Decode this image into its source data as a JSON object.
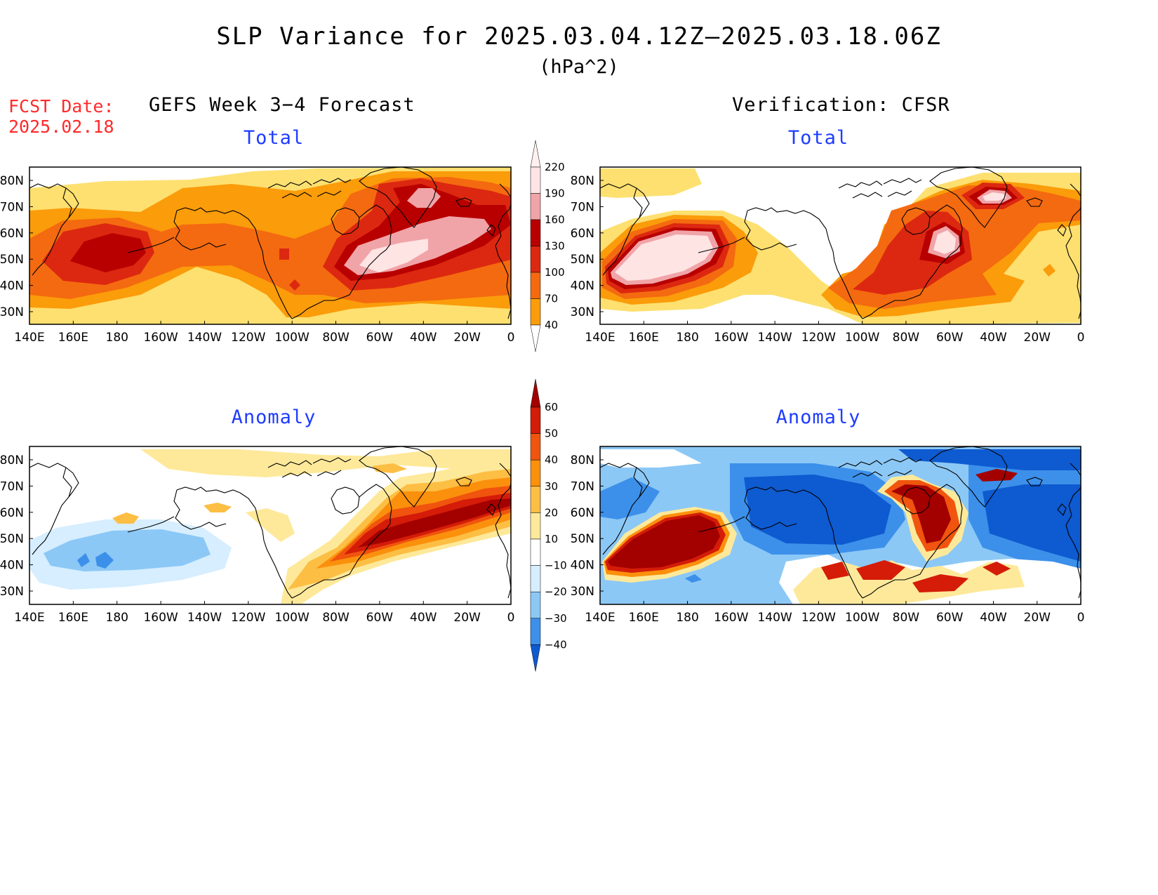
{
  "title": "SLP Variance for 2025.03.04.12Z–2025.03.18.06Z",
  "units": "(hPa^2)",
  "forecast_date": {
    "label": "FCST Date:",
    "value": "2025.02.18"
  },
  "columns": {
    "left": "GEFS Week 3−4 Forecast",
    "right": "Verification: CFSR"
  },
  "panels": [
    {
      "id": "gefs-total",
      "title": "Total"
    },
    {
      "id": "cfsr-total",
      "title": "Total"
    },
    {
      "id": "gefs-anomaly",
      "title": "Anomaly"
    },
    {
      "id": "cfsr-anomaly",
      "title": "Anomaly"
    }
  ],
  "lat_labels": [
    "80N",
    "70N",
    "60N",
    "50N",
    "40N",
    "30N"
  ],
  "lon_labels": [
    "140E",
    "160E",
    "180",
    "160W",
    "140W",
    "120W",
    "100W",
    "80W",
    "60W",
    "40W",
    "20W",
    "0"
  ],
  "total_colorbar": {
    "levels": [
      "220",
      "190",
      "160",
      "130",
      "100",
      "70",
      "40"
    ],
    "colors": [
      "#ffe4e4",
      "#f0a4a8",
      "#b80000",
      "#dc2810",
      "#f46a10",
      "#fb9c0a",
      "#fde070"
    ]
  },
  "anomaly_colorbar": {
    "levels": [
      "60",
      "50",
      "40",
      "30",
      "20",
      "10",
      "−10",
      "−20",
      "−30",
      "−40"
    ],
    "colors": [
      "#a30000",
      "#d41c08",
      "#f0540e",
      "#fb900c",
      "#fdbe44",
      "#fee99a",
      "#ffffff",
      "#d6eeff",
      "#8cc8f6",
      "#3c90ea",
      "#0e5ad0"
    ]
  }
}
